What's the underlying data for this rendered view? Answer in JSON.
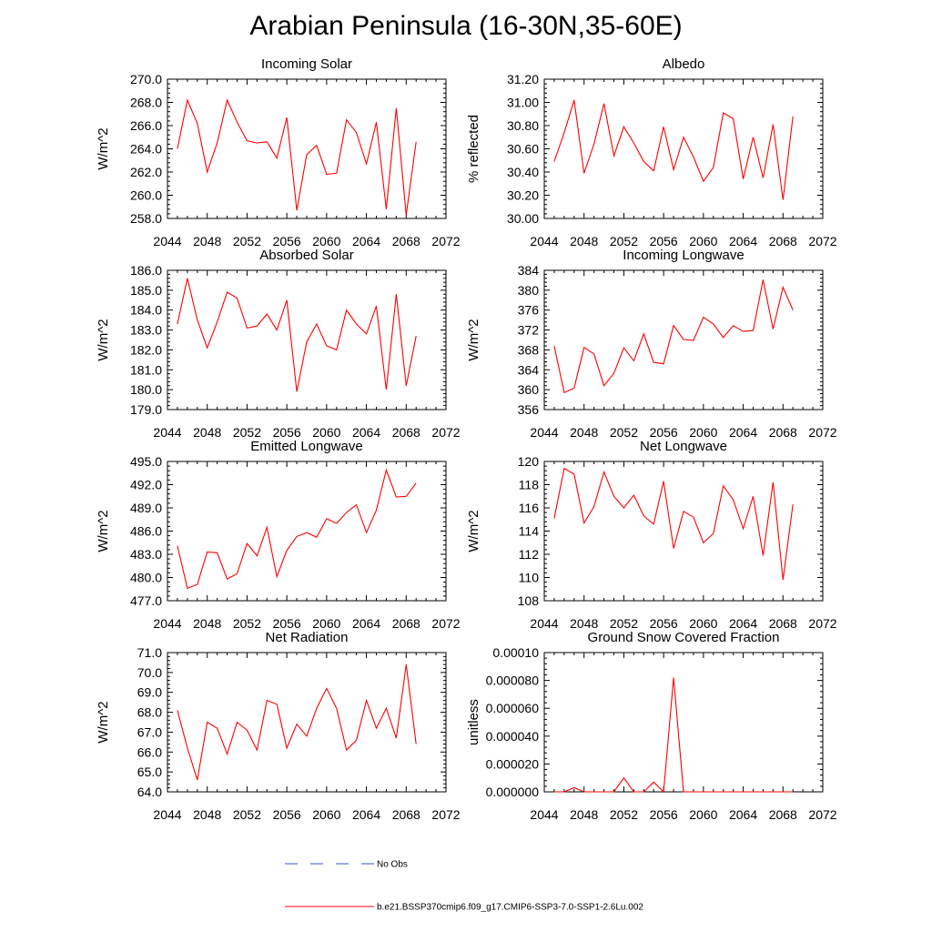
{
  "title": "Arabian Peninsula (16-30N,35-60E)",
  "legend": {
    "entries": [
      {
        "label": "No Obs",
        "color": "#3355cc",
        "style": "dashed"
      },
      {
        "label": "b.e21.BSSP370cmip6.f09_g17.CMIP6-SSP3-7.0-SSP1-2.6Lu.002",
        "color": "#ff0000",
        "style": "solid"
      }
    ]
  },
  "chart_data": [
    {
      "type": "line",
      "title": "Incoming Solar",
      "xlabel": "",
      "ylabel": "W/m^2",
      "xlim": [
        2044,
        2072
      ],
      "ylim": [
        258,
        270
      ],
      "xticks": [
        "2044",
        "2048",
        "2052",
        "2056",
        "2060",
        "2064",
        "2068",
        "2072"
      ],
      "yticks": [
        "258.0",
        "260.0",
        "262.0",
        "264.0",
        "266.0",
        "268.0",
        "270.0"
      ],
      "series": [
        {
          "color": "#ff0000",
          "x": [
            2045,
            2046,
            2047,
            2048,
            2049,
            2050,
            2051,
            2052,
            2053,
            2054,
            2055,
            2056,
            2057,
            2058,
            2059,
            2060,
            2061,
            2062,
            2063,
            2064,
            2065,
            2066,
            2067,
            2068,
            2069
          ],
          "y": [
            264.0,
            268.2,
            266.2,
            262.0,
            264.5,
            268.2,
            266.3,
            264.7,
            264.5,
            264.6,
            263.2,
            266.7,
            258.7,
            263.5,
            264.3,
            261.8,
            261.9,
            266.5,
            265.4,
            262.7,
            266.3,
            258.8,
            267.5,
            258.3,
            264.6
          ]
        }
      ]
    },
    {
      "type": "line",
      "title": "Albedo",
      "xlabel": "",
      "ylabel": "% reflected",
      "xlim": [
        2044,
        2072
      ],
      "ylim": [
        30.0,
        31.2
      ],
      "xticks": [
        "2044",
        "2048",
        "2052",
        "2056",
        "2060",
        "2064",
        "2068",
        "2072"
      ],
      "yticks": [
        "30.00",
        "30.20",
        "30.40",
        "30.60",
        "30.80",
        "31.00",
        "31.20"
      ],
      "series": [
        {
          "color": "#ff0000",
          "x": [
            2045,
            2046,
            2047,
            2048,
            2049,
            2050,
            2051,
            2052,
            2053,
            2054,
            2055,
            2056,
            2057,
            2058,
            2059,
            2060,
            2061,
            2062,
            2063,
            2064,
            2065,
            2066,
            2067,
            2068,
            2069
          ],
          "y": [
            30.49,
            30.74,
            31.02,
            30.39,
            30.64,
            30.99,
            30.54,
            30.79,
            30.65,
            30.49,
            30.41,
            30.79,
            30.42,
            30.7,
            30.53,
            30.32,
            30.44,
            30.91,
            30.86,
            30.34,
            30.7,
            30.35,
            30.81,
            30.16,
            30.88
          ]
        }
      ]
    },
    {
      "type": "line",
      "title": "Absorbed Solar",
      "xlabel": "",
      "ylabel": "W/m^2",
      "xlim": [
        2044,
        2072
      ],
      "ylim": [
        179,
        186
      ],
      "xticks": [
        "2044",
        "2048",
        "2052",
        "2056",
        "2060",
        "2064",
        "2068",
        "2072"
      ],
      "yticks": [
        "179.0",
        "180.0",
        "181.0",
        "182.0",
        "183.0",
        "184.0",
        "185.0",
        "186.0"
      ],
      "series": [
        {
          "color": "#ff0000",
          "x": [
            2045,
            2046,
            2047,
            2048,
            2049,
            2050,
            2051,
            2052,
            2053,
            2054,
            2055,
            2056,
            2057,
            2058,
            2059,
            2060,
            2061,
            2062,
            2063,
            2064,
            2065,
            2066,
            2067,
            2068,
            2069
          ],
          "y": [
            183.3,
            185.6,
            183.5,
            182.1,
            183.4,
            184.9,
            184.6,
            183.1,
            183.2,
            183.8,
            183.0,
            184.5,
            179.9,
            182.4,
            183.3,
            182.2,
            182.0,
            184.0,
            183.3,
            182.8,
            184.2,
            180.0,
            184.8,
            180.2,
            182.7
          ]
        }
      ]
    },
    {
      "type": "line",
      "title": "Incoming Longwave",
      "xlabel": "",
      "ylabel": "W/m^2",
      "xlim": [
        2044,
        2072
      ],
      "ylim": [
        356,
        384
      ],
      "xticks": [
        "2044",
        "2048",
        "2052",
        "2056",
        "2060",
        "2064",
        "2068",
        "2072"
      ],
      "yticks": [
        "356",
        "360",
        "364",
        "368",
        "372",
        "376",
        "380",
        "384"
      ],
      "series": [
        {
          "color": "#ff0000",
          "x": [
            2045,
            2046,
            2047,
            2048,
            2049,
            2050,
            2051,
            2052,
            2053,
            2054,
            2055,
            2056,
            2057,
            2058,
            2059,
            2060,
            2061,
            2062,
            2063,
            2064,
            2065,
            2066,
            2067,
            2068,
            2069
          ],
          "y": [
            368.8,
            359.4,
            360.3,
            368.5,
            367.2,
            360.8,
            363.3,
            368.4,
            365.8,
            371.2,
            365.5,
            365.2,
            372.9,
            370.1,
            369.9,
            374.6,
            373.2,
            370.5,
            372.9,
            371.7,
            371.9,
            382.1,
            372.2,
            380.6,
            376.0
          ]
        }
      ]
    },
    {
      "type": "line",
      "title": "Emitted Longwave",
      "xlabel": "",
      "ylabel": "W/m^2",
      "xlim": [
        2044,
        2072
      ],
      "ylim": [
        477,
        495
      ],
      "xticks": [
        "2044",
        "2048",
        "2052",
        "2056",
        "2060",
        "2064",
        "2068",
        "2072"
      ],
      "yticks": [
        "477.0",
        "480.0",
        "483.0",
        "486.0",
        "489.0",
        "492.0",
        "495.0"
      ],
      "series": [
        {
          "color": "#ff0000",
          "x": [
            2045,
            2046,
            2047,
            2048,
            2049,
            2050,
            2051,
            2052,
            2053,
            2054,
            2055,
            2056,
            2057,
            2058,
            2059,
            2060,
            2061,
            2062,
            2063,
            2064,
            2065,
            2066,
            2067,
            2068,
            2069
          ],
          "y": [
            484.1,
            478.6,
            479.1,
            483.3,
            483.2,
            479.8,
            480.5,
            484.4,
            482.8,
            486.5,
            480.1,
            483.5,
            485.3,
            485.8,
            485.2,
            487.6,
            487.0,
            488.4,
            489.4,
            485.8,
            488.7,
            493.9,
            490.4,
            490.5,
            492.2
          ]
        }
      ]
    },
    {
      "type": "line",
      "title": "Net Longwave",
      "xlabel": "",
      "ylabel": "W/m^2",
      "xlim": [
        2044,
        2072
      ],
      "ylim": [
        108,
        120
      ],
      "xticks": [
        "2044",
        "2048",
        "2052",
        "2056",
        "2060",
        "2064",
        "2068",
        "2072"
      ],
      "yticks": [
        "108",
        "110",
        "112",
        "114",
        "116",
        "118",
        "120"
      ],
      "series": [
        {
          "color": "#ff0000",
          "x": [
            2045,
            2046,
            2047,
            2048,
            2049,
            2050,
            2051,
            2052,
            2053,
            2054,
            2055,
            2056,
            2057,
            2058,
            2059,
            2060,
            2061,
            2062,
            2063,
            2064,
            2065,
            2066,
            2067,
            2068,
            2069
          ],
          "y": [
            115.1,
            119.4,
            118.9,
            114.7,
            116.1,
            119.1,
            117.0,
            116.0,
            117.1,
            115.3,
            114.6,
            118.3,
            112.5,
            115.7,
            115.2,
            113.0,
            113.8,
            117.9,
            116.7,
            114.2,
            117.0,
            111.9,
            118.2,
            109.8,
            116.3
          ]
        }
      ]
    },
    {
      "type": "line",
      "title": "Net Radiation",
      "xlabel": "",
      "ylabel": "W/m^2",
      "xlim": [
        2044,
        2072
      ],
      "ylim": [
        64,
        71
      ],
      "xticks": [
        "2044",
        "2048",
        "2052",
        "2056",
        "2060",
        "2064",
        "2068",
        "2072"
      ],
      "yticks": [
        "64.0",
        "65.0",
        "66.0",
        "67.0",
        "68.0",
        "69.0",
        "70.0",
        "71.0"
      ],
      "series": [
        {
          "color": "#ff0000",
          "x": [
            2045,
            2046,
            2047,
            2048,
            2049,
            2050,
            2051,
            2052,
            2053,
            2054,
            2055,
            2056,
            2057,
            2058,
            2059,
            2060,
            2061,
            2062,
            2063,
            2064,
            2065,
            2066,
            2067,
            2068,
            2069
          ],
          "y": [
            68.1,
            66.2,
            64.6,
            67.5,
            67.2,
            65.9,
            67.5,
            67.1,
            66.1,
            68.6,
            68.4,
            66.2,
            67.4,
            66.8,
            68.2,
            69.2,
            68.2,
            66.1,
            66.6,
            68.6,
            67.2,
            68.2,
            66.7,
            70.4,
            66.4
          ]
        }
      ]
    },
    {
      "type": "line",
      "title": "Ground Snow Covered Fraction",
      "xlabel": "",
      "ylabel": "unitless",
      "xlim": [
        2044,
        2072
      ],
      "ylim": [
        0,
        0.0001
      ],
      "xticks": [
        "2044",
        "2048",
        "2052",
        "2056",
        "2060",
        "2064",
        "2068",
        "2072"
      ],
      "yticks": [
        "0.000000",
        "0.000020",
        "0.000040",
        "0.000060",
        "0.000080",
        "0.00010"
      ],
      "series": [
        {
          "color": "#ff0000",
          "x": [
            2045,
            2046,
            2047,
            2048,
            2049,
            2050,
            2051,
            2052,
            2053,
            2054,
            2055,
            2056,
            2057,
            2058,
            2059,
            2060,
            2061,
            2062,
            2063,
            2064,
            2065,
            2066,
            2067,
            2068,
            2069
          ],
          "y": [
            0,
            0,
            3e-06,
            0,
            0,
            0,
            0,
            1e-05,
            0,
            0,
            7e-06,
            0,
            8.2e-05,
            0,
            0,
            0,
            0,
            0,
            0,
            0,
            0,
            0,
            0,
            0,
            0
          ]
        }
      ]
    }
  ]
}
